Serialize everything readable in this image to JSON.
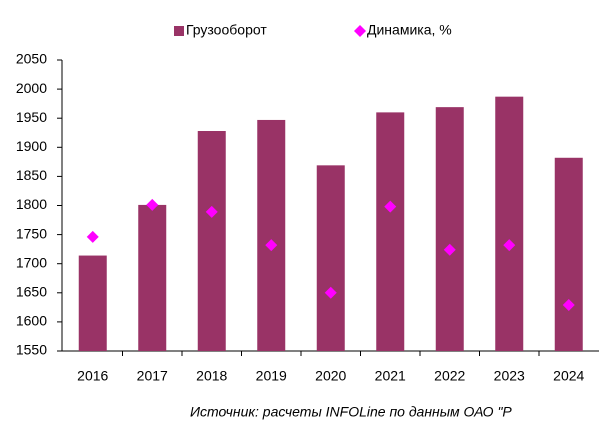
{
  "chart_data": {
    "type": "bar",
    "categories": [
      "2016",
      "2017",
      "2018",
      "2019",
      "2020",
      "2021",
      "2022",
      "2023",
      "2024"
    ],
    "series": [
      {
        "name": "Грузооборот",
        "color": "#993366",
        "type": "bar",
        "values": [
          1714,
          1801,
          1928,
          1947,
          1869,
          1960,
          1969,
          1987,
          1882
        ]
      },
      {
        "name": "Динамика, %",
        "color": "#ff00ff",
        "type": "marker",
        "values": [
          1746,
          1801,
          1789,
          1732,
          1650,
          1798,
          1724,
          1732,
          1629
        ]
      }
    ],
    "ylim": [
      1550,
      2050
    ],
    "yticks": [
      1550,
      1600,
      1650,
      1700,
      1750,
      1800,
      1850,
      1900,
      1950,
      2000,
      2050
    ],
    "grid": false,
    "legend": "top",
    "source": "Источник: расчеты INFOLine по данным ОАО \"Р"
  }
}
